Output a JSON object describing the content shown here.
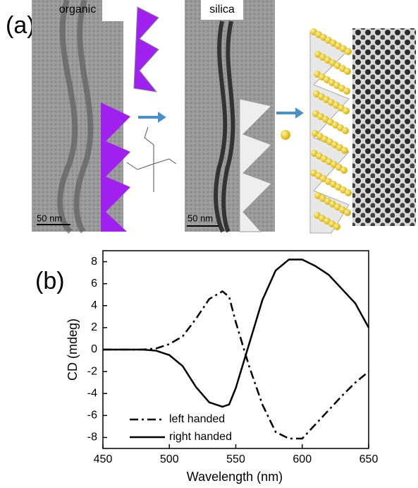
{
  "panel_a": {
    "label": "(a)",
    "images": [
      {
        "label": "organic",
        "scale": "50 nm"
      },
      {
        "label": "silica",
        "scale": "50 nm"
      }
    ]
  },
  "chart_data": {
    "type": "line",
    "panel_label": "(b)",
    "x_label": "Wavelength (nm)",
    "y_label": "CD (mdeg)",
    "x": [
      450,
      460,
      470,
      480,
      490,
      500,
      510,
      520,
      530,
      540,
      545,
      550,
      560,
      570,
      580,
      590,
      600,
      610,
      620,
      630,
      640,
      650
    ],
    "series": [
      {
        "name": "left handed",
        "color": "#000000",
        "style": "dashdot",
        "values": [
          0,
          0,
          0,
          0,
          0.1,
          0.5,
          1.2,
          2.8,
          4.6,
          5.3,
          4.8,
          2.5,
          -1.5,
          -5,
          -7.5,
          -8.1,
          -8.1,
          -6.8,
          -5.5,
          -4.2,
          -3,
          -2
        ]
      },
      {
        "name": "right handed",
        "color": "#000000",
        "style": "solid",
        "values": [
          0,
          0,
          0,
          0,
          -0.1,
          -0.5,
          -1.5,
          -3.4,
          -4.8,
          -5.2,
          -5,
          -3.5,
          0.5,
          4.5,
          7.2,
          8.2,
          8.2,
          7.6,
          6.8,
          5.5,
          4.2,
          2
        ]
      }
    ],
    "xlim": [
      450,
      650
    ],
    "xticks": [
      450,
      500,
      550,
      600,
      650
    ],
    "ylim": [
      -9,
      9
    ],
    "yticks": [
      -8,
      -6,
      -4,
      -2,
      0,
      2,
      4,
      6,
      8
    ],
    "legend": "lower-left"
  }
}
